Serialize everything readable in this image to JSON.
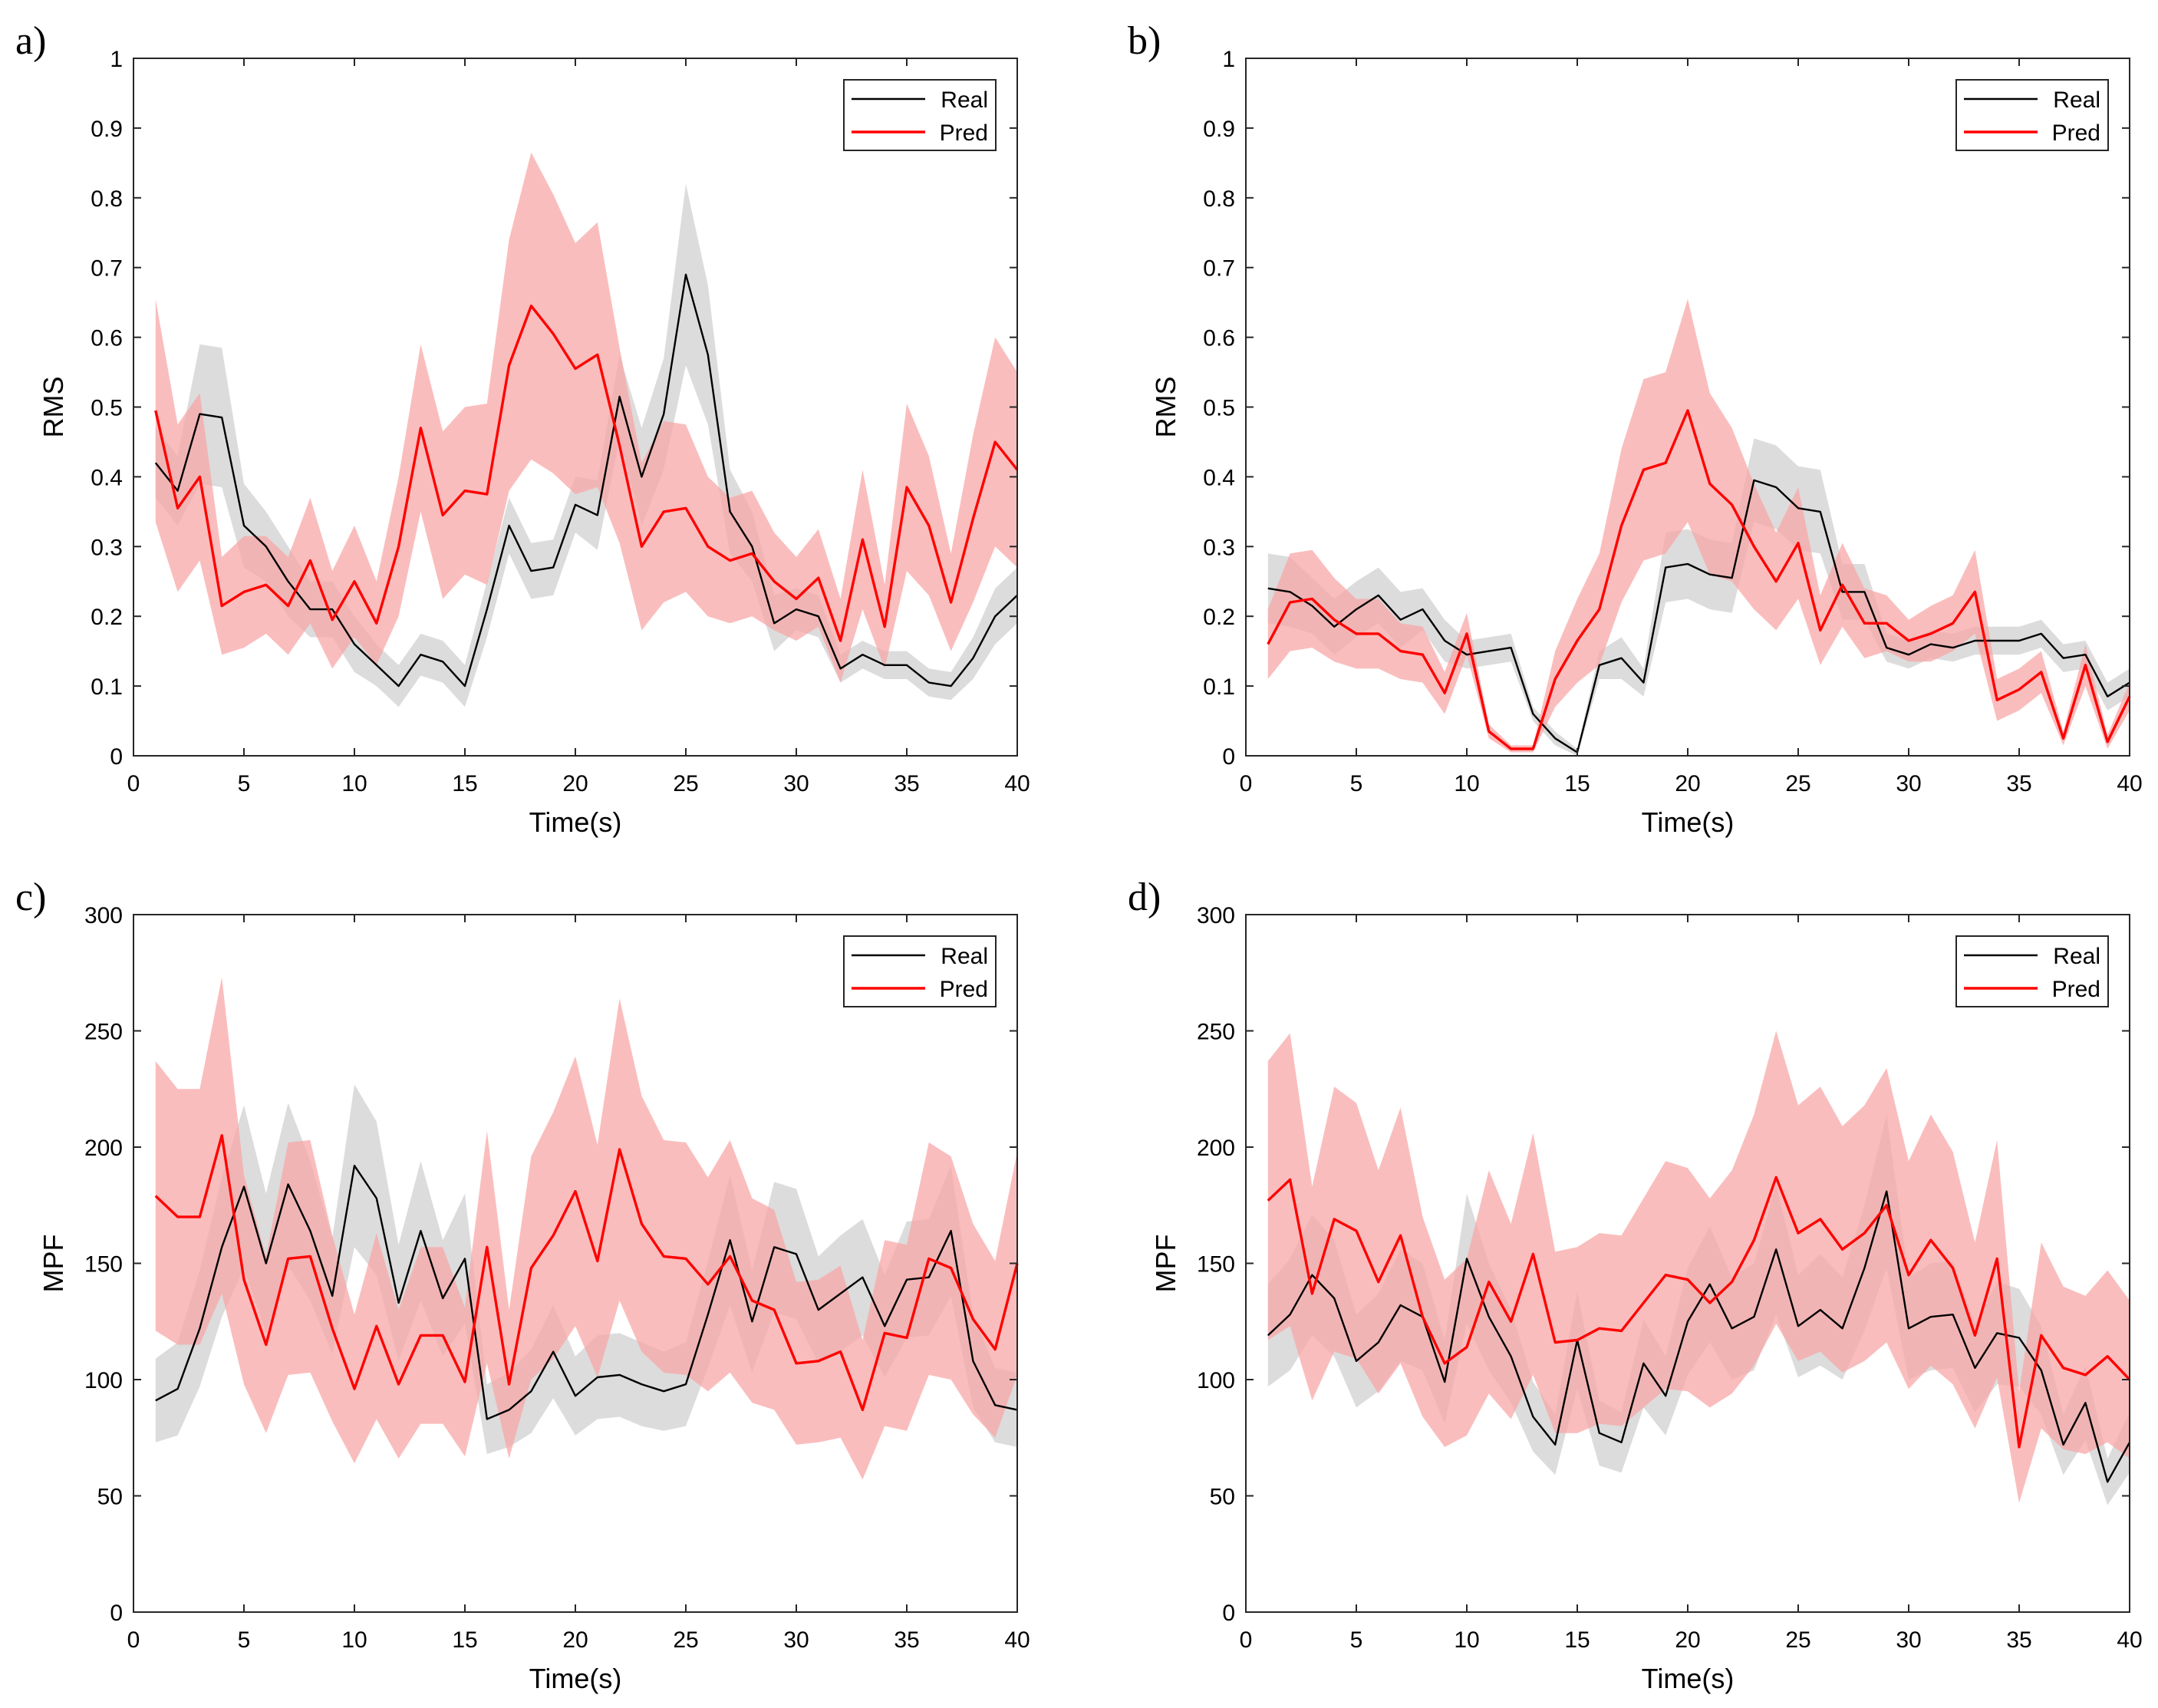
{
  "chart_data": [
    {
      "panel": "a)",
      "type": "line",
      "xlabel": "Time(s)",
      "ylabel": "RMS",
      "xlim": [
        0,
        40
      ],
      "ylim": [
        0,
        1
      ],
      "xticks": [
        0,
        5,
        10,
        15,
        20,
        25,
        30,
        35,
        40
      ],
      "yticks": [
        0,
        0.1,
        0.2,
        0.3,
        0.4,
        0.5,
        0.6,
        0.7,
        0.8,
        0.9,
        1
      ],
      "ytick_labels": [
        "0",
        "0.1",
        "0.2",
        "0.3",
        "0.4",
        "0.5",
        "0.6",
        "0.7",
        "0.8",
        "0.9",
        "1"
      ],
      "legend": [
        "Real",
        "Pred"
      ],
      "x": [
        1,
        2,
        3,
        4,
        5,
        6,
        7,
        8,
        9,
        10,
        11,
        12,
        13,
        14,
        15,
        16,
        17,
        18,
        19,
        20,
        21,
        22,
        23,
        24,
        25,
        26,
        27,
        28,
        29,
        30,
        31,
        32,
        33,
        34,
        35,
        36,
        37,
        38,
        39,
        40
      ],
      "series": [
        {
          "name": "Real",
          "color": "#000000",
          "band_color": "#bfbfbf",
          "values": [
            0.42,
            0.38,
            0.49,
            0.485,
            0.33,
            0.3,
            0.25,
            0.21,
            0.21,
            0.16,
            0.13,
            0.1,
            0.145,
            0.135,
            0.1,
            0.21,
            0.33,
            0.265,
            0.27,
            0.36,
            0.345,
            0.515,
            0.4,
            0.49,
            0.69,
            0.575,
            0.35,
            0.3,
            0.19,
            0.21,
            0.2,
            0.125,
            0.145,
            0.13,
            0.13,
            0.105,
            0.1,
            0.14,
            0.2,
            0.23
          ],
          "band": [
            0.05,
            0.05,
            0.1,
            0.1,
            0.06,
            0.05,
            0.05,
            0.04,
            0.04,
            0.04,
            0.03,
            0.03,
            0.03,
            0.03,
            0.03,
            0.04,
            0.04,
            0.04,
            0.04,
            0.04,
            0.05,
            0.06,
            0.07,
            0.08,
            0.13,
            0.1,
            0.06,
            0.05,
            0.04,
            0.03,
            0.03,
            0.02,
            0.02,
            0.02,
            0.02,
            0.02,
            0.02,
            0.03,
            0.04,
            0.04
          ]
        },
        {
          "name": "Pred",
          "color": "#ff0000",
          "band_color": "#f8a7a7",
          "values": [
            0.495,
            0.355,
            0.4,
            0.215,
            0.235,
            0.245,
            0.215,
            0.28,
            0.195,
            0.25,
            0.19,
            0.3,
            0.47,
            0.345,
            0.38,
            0.375,
            0.56,
            0.645,
            0.605,
            0.555,
            0.575,
            0.445,
            0.3,
            0.35,
            0.355,
            0.3,
            0.28,
            0.29,
            0.25,
            0.225,
            0.255,
            0.165,
            0.31,
            0.185,
            0.385,
            0.33,
            0.22,
            0.34,
            0.45,
            0.41
          ],
          "band": [
            0.16,
            0.12,
            0.12,
            0.07,
            0.08,
            0.07,
            0.07,
            0.09,
            0.07,
            0.08,
            0.06,
            0.1,
            0.12,
            0.12,
            0.12,
            0.13,
            0.18,
            0.22,
            0.2,
            0.18,
            0.19,
            0.14,
            0.12,
            0.13,
            0.12,
            0.1,
            0.09,
            0.09,
            0.07,
            0.06,
            0.07,
            0.06,
            0.1,
            0.06,
            0.12,
            0.1,
            0.07,
            0.12,
            0.15,
            0.14
          ]
        }
      ]
    },
    {
      "panel": "b)",
      "type": "line",
      "xlabel": "Time(s)",
      "ylabel": "RMS",
      "xlim": [
        0,
        40
      ],
      "ylim": [
        0,
        1
      ],
      "xticks": [
        0,
        5,
        10,
        15,
        20,
        25,
        30,
        35,
        40
      ],
      "yticks": [
        0,
        0.1,
        0.2,
        0.3,
        0.4,
        0.5,
        0.6,
        0.7,
        0.8,
        0.9,
        1
      ],
      "ytick_labels": [
        "0",
        "0.1",
        "0.2",
        "0.3",
        "0.4",
        "0.5",
        "0.6",
        "0.7",
        "0.8",
        "0.9",
        "1"
      ],
      "legend": [
        "Real",
        "Pred"
      ],
      "x": [
        1,
        2,
        3,
        4,
        5,
        6,
        7,
        8,
        9,
        10,
        11,
        12,
        13,
        14,
        15,
        16,
        17,
        18,
        19,
        20,
        21,
        22,
        23,
        24,
        25,
        26,
        27,
        28,
        29,
        30,
        31,
        32,
        33,
        34,
        35,
        36,
        37,
        38,
        39,
        40
      ],
      "series": [
        {
          "name": "Real",
          "color": "#000000",
          "band_color": "#bfbfbf",
          "values": [
            0.24,
            0.235,
            0.215,
            0.185,
            0.21,
            0.23,
            0.195,
            0.21,
            0.165,
            0.145,
            0.15,
            0.155,
            0.06,
            0.025,
            0.005,
            0.13,
            0.14,
            0.105,
            0.27,
            0.275,
            0.26,
            0.255,
            0.395,
            0.385,
            0.355,
            0.35,
            0.235,
            0.235,
            0.155,
            0.145,
            0.16,
            0.155,
            0.165,
            0.165,
            0.165,
            0.175,
            0.14,
            0.145,
            0.085,
            0.105
          ],
          "band": [
            0.05,
            0.05,
            0.04,
            0.04,
            0.04,
            0.04,
            0.04,
            0.03,
            0.03,
            0.02,
            0.02,
            0.02,
            0.01,
            0.01,
            0.005,
            0.02,
            0.03,
            0.02,
            0.05,
            0.05,
            0.05,
            0.05,
            0.06,
            0.06,
            0.06,
            0.06,
            0.04,
            0.04,
            0.02,
            0.02,
            0.02,
            0.02,
            0.02,
            0.02,
            0.02,
            0.02,
            0.02,
            0.02,
            0.02,
            0.02
          ]
        },
        {
          "name": "Pred",
          "color": "#ff0000",
          "band_color": "#f8a7a7",
          "values": [
            0.16,
            0.22,
            0.225,
            0.195,
            0.175,
            0.175,
            0.15,
            0.145,
            0.09,
            0.175,
            0.035,
            0.01,
            0.01,
            0.11,
            0.165,
            0.21,
            0.33,
            0.41,
            0.42,
            0.495,
            0.39,
            0.36,
            0.3,
            0.25,
            0.305,
            0.18,
            0.245,
            0.19,
            0.19,
            0.165,
            0.175,
            0.19,
            0.235,
            0.08,
            0.095,
            0.12,
            0.025,
            0.13,
            0.02,
            0.085
          ],
          "band": [
            0.05,
            0.07,
            0.07,
            0.06,
            0.05,
            0.05,
            0.04,
            0.04,
            0.03,
            0.03,
            0.01,
            0.005,
            0.005,
            0.04,
            0.06,
            0.08,
            0.11,
            0.13,
            0.13,
            0.16,
            0.13,
            0.11,
            0.09,
            0.07,
            0.08,
            0.05,
            0.06,
            0.05,
            0.04,
            0.03,
            0.04,
            0.04,
            0.06,
            0.03,
            0.03,
            0.03,
            0.01,
            0.03,
            0.01,
            0.02
          ]
        }
      ]
    },
    {
      "panel": "c)",
      "type": "line",
      "xlabel": "Time(s)",
      "ylabel": "MPF",
      "xlim": [
        0,
        40
      ],
      "ylim": [
        0,
        300
      ],
      "xticks": [
        0,
        5,
        10,
        15,
        20,
        25,
        30,
        35,
        40
      ],
      "yticks": [
        0,
        50,
        100,
        150,
        200,
        250,
        300
      ],
      "ytick_labels": [
        "0",
        "50",
        "100",
        "150",
        "200",
        "250",
        "300"
      ],
      "legend": [
        "Real",
        "Pred"
      ],
      "x": [
        1,
        2,
        3,
        4,
        5,
        6,
        7,
        8,
        9,
        10,
        11,
        12,
        13,
        14,
        15,
        16,
        17,
        18,
        19,
        20,
        21,
        22,
        23,
        24,
        25,
        26,
        27,
        28,
        29,
        30,
        31,
        32,
        33,
        34,
        35,
        36,
        37,
        38,
        39,
        40
      ],
      "series": [
        {
          "name": "Real",
          "color": "#000000",
          "band_color": "#bfbfbf",
          "values": [
            91,
            96,
            122,
            157,
            183,
            150,
            184,
            164,
            136,
            192,
            178,
            133,
            164,
            135,
            152,
            83,
            87,
            95,
            112,
            93,
            101,
            102,
            98,
            95,
            98,
            128,
            160,
            125,
            157,
            154,
            130,
            137,
            144,
            123,
            143,
            144,
            164,
            108,
            89,
            87
          ],
          "band": [
            18,
            20,
            25,
            30,
            35,
            30,
            35,
            30,
            25,
            35,
            33,
            25,
            30,
            25,
            28,
            15,
            16,
            18,
            20,
            17,
            18,
            18,
            18,
            17,
            18,
            23,
            28,
            22,
            28,
            28,
            23,
            25,
            25,
            22,
            25,
            25,
            28,
            20,
            16,
            16
          ]
        },
        {
          "name": "Pred",
          "color": "#ff0000",
          "band_color": "#f8a7a7",
          "values": [
            179,
            170,
            170,
            205,
            143,
            115,
            152,
            153,
            122,
            96,
            123,
            98,
            119,
            119,
            99,
            157,
            98,
            148,
            162,
            181,
            151,
            199,
            167,
            153,
            152,
            141,
            153,
            134,
            130,
            107,
            108,
            112,
            87,
            120,
            118,
            152,
            148,
            126,
            113,
            150
          ],
          "band": [
            58,
            55,
            55,
            68,
            45,
            38,
            50,
            50,
            40,
            32,
            40,
            32,
            38,
            38,
            32,
            50,
            32,
            48,
            53,
            58,
            50,
            65,
            55,
            50,
            50,
            46,
            50,
            44,
            43,
            35,
            35,
            37,
            30,
            40,
            40,
            50,
            48,
            41,
            38,
            48
          ]
        }
      ]
    },
    {
      "panel": "d)",
      "type": "line",
      "xlabel": "Time(s)",
      "ylabel": "MPF",
      "xlim": [
        0,
        40
      ],
      "ylim": [
        0,
        300
      ],
      "xticks": [
        0,
        5,
        10,
        15,
        20,
        25,
        30,
        35,
        40
      ],
      "yticks": [
        0,
        50,
        100,
        150,
        200,
        250,
        300
      ],
      "ytick_labels": [
        "0",
        "50",
        "100",
        "150",
        "200",
        "250",
        "300"
      ],
      "legend": [
        "Real",
        "Pred"
      ],
      "x": [
        1,
        2,
        3,
        4,
        5,
        6,
        7,
        8,
        9,
        10,
        11,
        12,
        13,
        14,
        15,
        16,
        17,
        18,
        19,
        20,
        21,
        22,
        23,
        24,
        25,
        26,
        27,
        28,
        29,
        30,
        31,
        32,
        33,
        34,
        35,
        36,
        37,
        38,
        39,
        40
      ],
      "series": [
        {
          "name": "Real",
          "color": "#000000",
          "band_color": "#bfbfbf",
          "values": [
            119,
            128,
            145,
            135,
            108,
            116,
            132,
            127,
            99,
            152,
            127,
            110,
            84,
            72,
            117,
            77,
            73,
            107,
            93,
            125,
            141,
            122,
            127,
            156,
            123,
            130,
            122,
            148,
            181,
            122,
            127,
            128,
            105,
            120,
            118,
            104,
            72,
            90,
            56,
            73
          ],
          "band": [
            22,
            24,
            26,
            25,
            20,
            21,
            24,
            23,
            18,
            28,
            23,
            20,
            15,
            13,
            21,
            14,
            13,
            19,
            17,
            23,
            25,
            22,
            23,
            28,
            22,
            24,
            22,
            27,
            33,
            22,
            23,
            23,
            19,
            22,
            21,
            19,
            13,
            16,
            10,
            13
          ]
        },
        {
          "name": "Pred",
          "color": "#ff0000",
          "band_color": "#f8a7a7",
          "values": [
            177,
            186,
            137,
            169,
            164,
            142,
            162,
            127,
            107,
            114,
            142,
            125,
            154,
            116,
            117,
            122,
            121,
            133,
            145,
            143,
            133,
            142,
            160,
            187,
            163,
            169,
            156,
            163,
            175,
            145,
            160,
            148,
            119,
            152,
            71,
            119,
            105,
            102,
            110,
            100
          ],
          "band": [
            60,
            63,
            46,
            57,
            55,
            48,
            55,
            43,
            36,
            38,
            48,
            42,
            52,
            39,
            40,
            41,
            41,
            45,
            49,
            48,
            45,
            48,
            54,
            63,
            55,
            57,
            53,
            55,
            59,
            49,
            54,
            50,
            40,
            51,
            24,
            40,
            35,
            34,
            37,
            34
          ]
        }
      ]
    }
  ]
}
